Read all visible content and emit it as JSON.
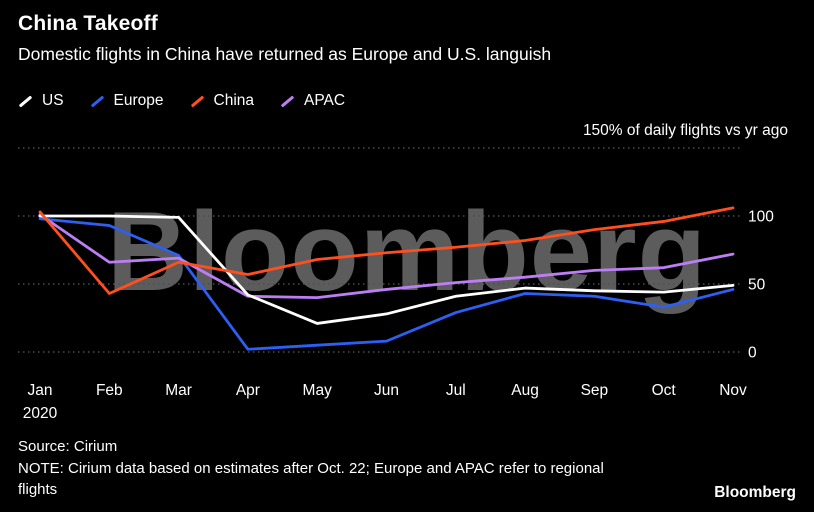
{
  "header": {
    "title": "China Takeoff",
    "subtitle": "Domestic flights in China have returned as Europe and U.S. languish"
  },
  "watermark": "Bloomberg",
  "chart_data": {
    "type": "line",
    "title": "China Takeoff",
    "x": [
      "Jan",
      "Feb",
      "Mar",
      "Apr",
      "May",
      "Jun",
      "Jul",
      "Aug",
      "Sep",
      "Oct",
      "Nov"
    ],
    "x_sub_label": "2020",
    "unit_note": "150% of daily flights vs yr ago",
    "ylim": [
      0,
      150
    ],
    "yticks": [
      100,
      50,
      0
    ],
    "gridlines": [
      150,
      100,
      50,
      0
    ],
    "legend_position": "top-left",
    "grid": "dotted-horizontal",
    "series": [
      {
        "name": "US",
        "color": "#ffffff",
        "values": [
          100,
          100,
          99,
          42,
          21,
          28,
          41,
          47,
          45,
          44,
          49
        ]
      },
      {
        "name": "Europe",
        "color": "#2c5ff2",
        "values": [
          98,
          93,
          71,
          2,
          5,
          8,
          29,
          43,
          41,
          33,
          46
        ]
      },
      {
        "name": "China",
        "color": "#ff4f1f",
        "values": [
          103,
          43,
          66,
          57,
          68,
          73,
          77,
          82,
          90,
          96,
          106
        ]
      },
      {
        "name": "APAC",
        "color": "#bd7ef5",
        "values": [
          101,
          66,
          69,
          41,
          40,
          46,
          51,
          55,
          60,
          62,
          72
        ]
      }
    ]
  },
  "footer": {
    "source": "Source: Cirium",
    "note": "NOTE: Cirium data based on estimates after Oct. 22; Europe and APAC refer to regional flights",
    "brand": "Bloomberg"
  }
}
